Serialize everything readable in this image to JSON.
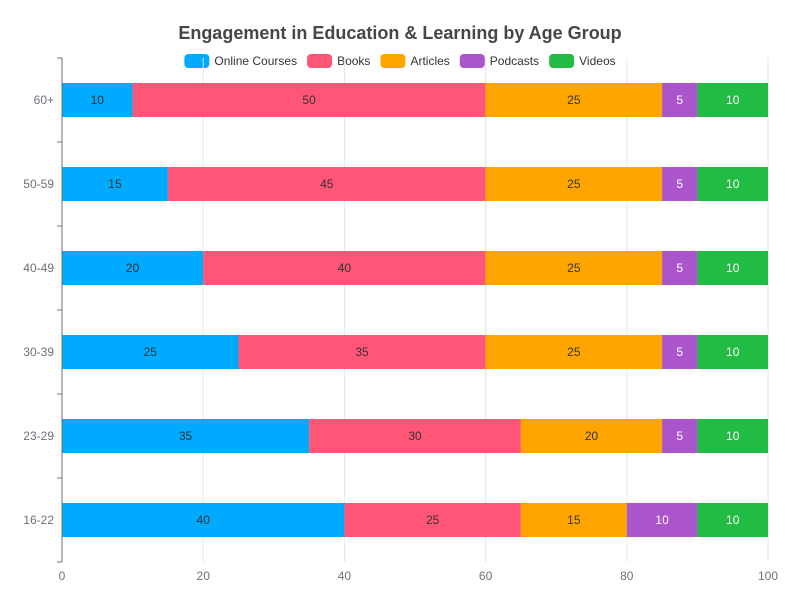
{
  "chart_data": {
    "type": "bar",
    "orientation": "horizontal",
    "stacked": true,
    "title": "Engagement in Education & Learning by Age Group",
    "xlabel": "",
    "ylabel": "",
    "xlim": [
      0,
      100
    ],
    "x_ticks": [
      0,
      20,
      40,
      60,
      80,
      100
    ],
    "grid": true,
    "legend_position": "top",
    "categories": [
      "16-22",
      "23-29",
      "30-39",
      "40-49",
      "50-59",
      "60+"
    ],
    "series": [
      {
        "name": "Online Courses",
        "color": "#00aaff",
        "label_color": "#333333",
        "values": [
          40,
          35,
          25,
          20,
          15,
          10
        ]
      },
      {
        "name": "Books",
        "color": "#ff5577",
        "label_color": "#333333",
        "values": [
          25,
          30,
          35,
          40,
          45,
          50
        ]
      },
      {
        "name": "Articles",
        "color": "#ffa500",
        "label_color": "#333333",
        "values": [
          15,
          20,
          25,
          25,
          25,
          25
        ]
      },
      {
        "name": "Podcasts",
        "color": "#aa55cc",
        "label_color": "#ffffff",
        "values": [
          10,
          5,
          5,
          5,
          5,
          5
        ]
      },
      {
        "name": "Videos",
        "color": "#22bb44",
        "label_color": "#ffffff",
        "values": [
          10,
          10,
          10,
          10,
          10,
          10
        ]
      }
    ]
  }
}
